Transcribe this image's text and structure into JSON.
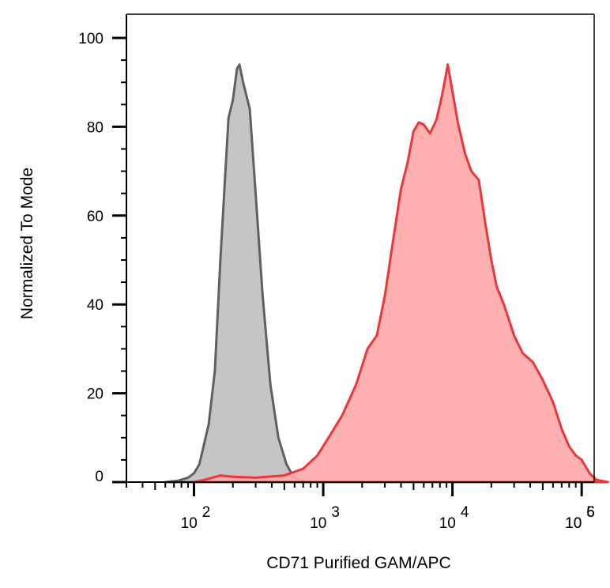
{
  "chart_data": {
    "type": "area",
    "title": "",
    "xlabel": "CD71 Purified GAM/APC",
    "ylabel": "Normalized To Mode",
    "x_scale": "log",
    "xlim": [
      30,
      125000
    ],
    "ylim": [
      0,
      100
    ],
    "grid": false,
    "legend": "none",
    "y_ticks": [
      {
        "value": 0,
        "label": "0"
      },
      {
        "value": 20,
        "label": "20"
      },
      {
        "value": 40,
        "label": "40"
      },
      {
        "value": 60,
        "label": "60"
      },
      {
        "value": 80,
        "label": "80"
      },
      {
        "value": 100,
        "label": "100"
      }
    ],
    "x_ticks": [
      {
        "value": 100,
        "base": "10",
        "exp": "2"
      },
      {
        "value": 1000,
        "base": "10",
        "exp": "3"
      },
      {
        "value": 10000,
        "base": "10",
        "exp": "4"
      },
      {
        "value": 100000,
        "base": "10",
        "exp": "5"
      },
      {
        "value": 1000000,
        "base": "10",
        "exp": "6"
      }
    ],
    "series": [
      {
        "color": "#606060",
        "fill": "#c0c0c0",
        "points": [
          [
            60,
            0
          ],
          [
            75,
            0.3
          ],
          [
            90,
            1
          ],
          [
            100,
            2
          ],
          [
            110,
            4
          ],
          [
            130,
            13
          ],
          [
            145,
            25
          ],
          [
            160,
            50
          ],
          [
            175,
            70
          ],
          [
            185,
            82
          ],
          [
            200,
            86
          ],
          [
            215,
            93
          ],
          [
            225,
            94
          ],
          [
            240,
            90
          ],
          [
            270,
            84
          ],
          [
            300,
            65
          ],
          [
            340,
            42
          ],
          [
            390,
            22
          ],
          [
            450,
            10
          ],
          [
            520,
            4
          ],
          [
            580,
            1.5
          ],
          [
            650,
            0.3
          ],
          [
            750,
            0
          ]
        ]
      },
      {
        "color": "#e8383c",
        "fill": "#ffaaaa",
        "points": [
          [
            100,
            0
          ],
          [
            120,
            0.5
          ],
          [
            160,
            1.5
          ],
          [
            200,
            1.2
          ],
          [
            300,
            1
          ],
          [
            500,
            1.5
          ],
          [
            700,
            3
          ],
          [
            900,
            6
          ],
          [
            1100,
            10
          ],
          [
            1400,
            15
          ],
          [
            1800,
            22
          ],
          [
            2200,
            30
          ],
          [
            2600,
            33
          ],
          [
            3000,
            42
          ],
          [
            3500,
            55
          ],
          [
            4000,
            66
          ],
          [
            4500,
            72
          ],
          [
            5000,
            79
          ],
          [
            5500,
            81
          ],
          [
            6000,
            80.5
          ],
          [
            6700,
            78.5
          ],
          [
            7500,
            81.5
          ],
          [
            8300,
            87
          ],
          [
            9200,
            94
          ],
          [
            10000,
            88
          ],
          [
            11000,
            81
          ],
          [
            12500,
            74
          ],
          [
            14000,
            70
          ],
          [
            16000,
            68
          ],
          [
            18000,
            58
          ],
          [
            20000,
            50
          ],
          [
            22000,
            44
          ],
          [
            25000,
            40
          ],
          [
            30000,
            33
          ],
          [
            35000,
            29
          ],
          [
            42000,
            27
          ],
          [
            50000,
            23
          ],
          [
            60000,
            18
          ],
          [
            70000,
            12
          ],
          [
            80000,
            8
          ],
          [
            90000,
            6
          ],
          [
            100000,
            5
          ],
          [
            115000,
            2
          ],
          [
            130000,
            0.5
          ],
          [
            160000,
            0
          ]
        ]
      }
    ]
  }
}
